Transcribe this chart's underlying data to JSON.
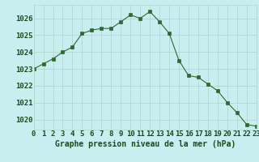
{
  "x": [
    0,
    1,
    2,
    3,
    4,
    5,
    6,
    7,
    8,
    9,
    10,
    11,
    12,
    13,
    14,
    15,
    16,
    17,
    18,
    19,
    20,
    21,
    22,
    23
  ],
  "y": [
    1023.0,
    1023.3,
    1023.6,
    1024.0,
    1024.3,
    1025.1,
    1025.3,
    1025.4,
    1025.4,
    1025.8,
    1026.2,
    1026.0,
    1026.4,
    1025.8,
    1025.1,
    1023.5,
    1022.6,
    1022.5,
    1022.1,
    1021.7,
    1021.0,
    1020.4,
    1019.7,
    1019.6
  ],
  "ylim": [
    1019.4,
    1026.8
  ],
  "yticks": [
    1020,
    1021,
    1022,
    1023,
    1024,
    1025,
    1026
  ],
  "xlim": [
    0,
    23
  ],
  "xticks": [
    0,
    1,
    2,
    3,
    4,
    5,
    6,
    7,
    8,
    9,
    10,
    11,
    12,
    13,
    14,
    15,
    16,
    17,
    18,
    19,
    20,
    21,
    22,
    23
  ],
  "xlabel": "Graphe pression niveau de la mer (hPa)",
  "line_color": "#2d6a2d",
  "marker_color": "#2d6a2d",
  "bg_color": "#c8eef0",
  "grid_color": "#b0d8cc",
  "text_color": "#1a4a1a",
  "font_size_label": 7,
  "font_size_tick": 6.5
}
